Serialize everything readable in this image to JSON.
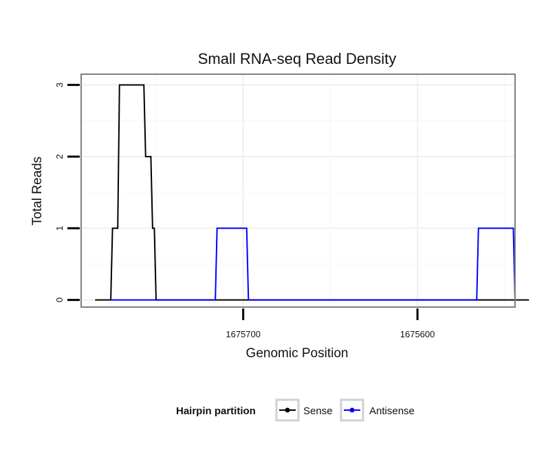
{
  "chart_data": {
    "type": "line",
    "title": "Small RNA-seq Read Density",
    "xlabel": "Genomic Position",
    "ylabel": "Total Reads",
    "x_reversed": true,
    "xlim": [
      1675793,
      1675544
    ],
    "ylim": [
      -0.1,
      3.15
    ],
    "x_ticks": [
      1675700,
      1675600
    ],
    "y_ticks": [
      0,
      1,
      2,
      3
    ],
    "grid": true,
    "legend": {
      "title": "Hairpin partition",
      "position": "bottom"
    },
    "series": [
      {
        "name": "Sense",
        "color": "#000000",
        "points": [
          [
            1675785,
            0
          ],
          [
            1675776,
            0
          ],
          [
            1675775,
            1
          ],
          [
            1675772,
            1
          ],
          [
            1675771,
            3
          ],
          [
            1675757,
            3
          ],
          [
            1675756,
            2
          ],
          [
            1675753,
            2
          ],
          [
            1675752,
            1
          ],
          [
            1675751,
            1
          ],
          [
            1675750,
            0
          ],
          [
            1675701,
            0
          ],
          [
            1675690,
            0
          ],
          [
            1675614,
            0
          ],
          [
            1675560,
            0
          ],
          [
            1675536,
            0
          ]
        ]
      },
      {
        "name": "Antisense",
        "color": "#0000ff",
        "points": [
          [
            1675776,
            0
          ],
          [
            1675716,
            0
          ],
          [
            1675715,
            1
          ],
          [
            1675698,
            1
          ],
          [
            1675697,
            0
          ],
          [
            1675566,
            0
          ],
          [
            1675565,
            1
          ],
          [
            1675545,
            1
          ],
          [
            1675544,
            0
          ]
        ]
      }
    ]
  }
}
